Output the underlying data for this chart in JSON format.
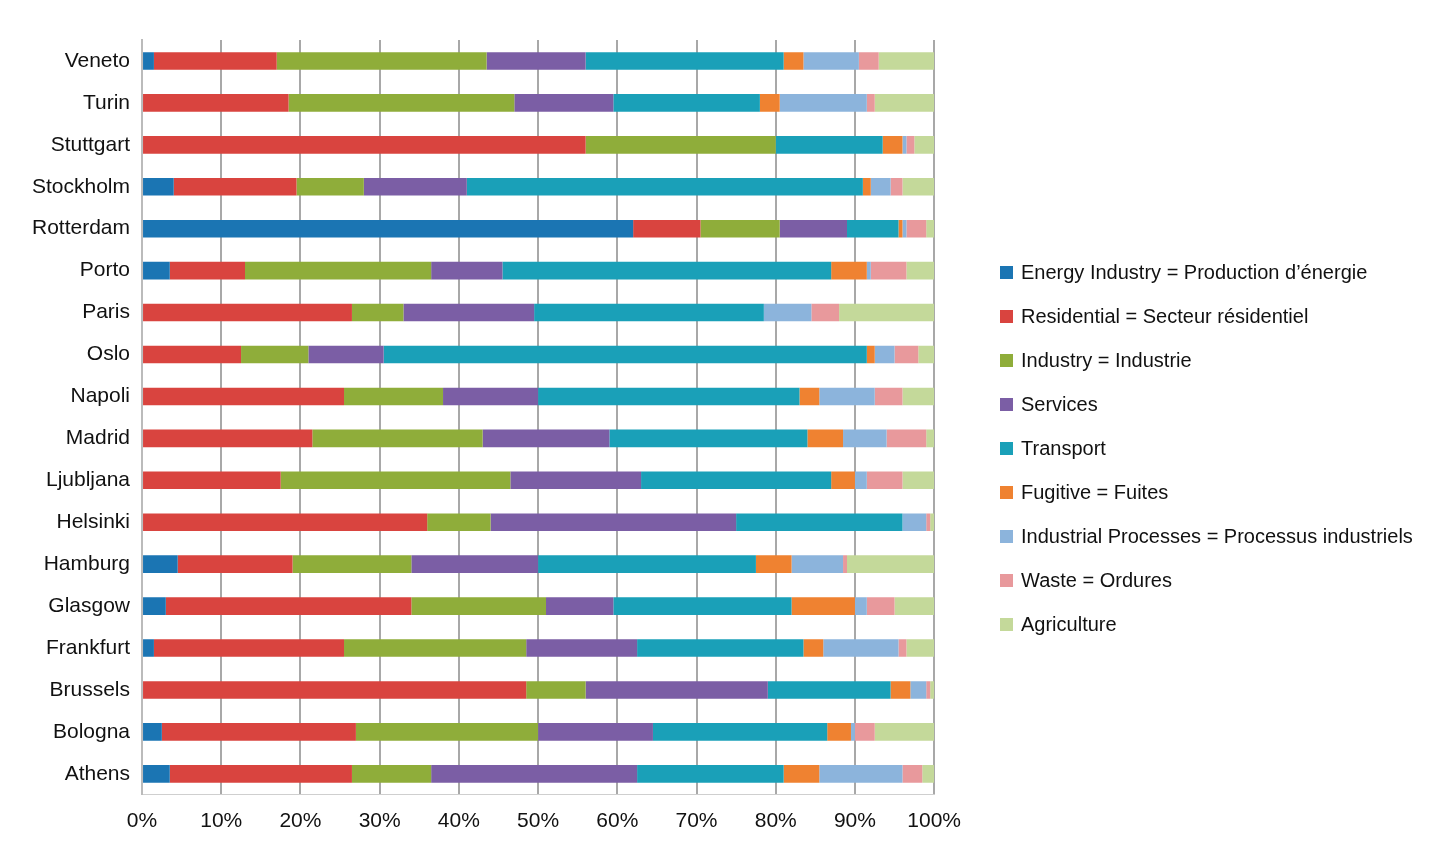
{
  "chart_data": {
    "type": "bar",
    "orientation": "horizontal",
    "stacked": true,
    "categories": [
      "Veneto",
      "Turin",
      "Stuttgart",
      "Stockholm",
      "Rotterdam",
      "Porto",
      "Paris",
      "Oslo",
      "Napoli",
      "Madrid",
      "Ljubljana",
      "Helsinki",
      "Hamburg",
      "Glasgow",
      "Frankfurt",
      "Brussels",
      "Bologna",
      "Athens"
    ],
    "series": [
      {
        "name": "Energy Industry  = Production d’énergie",
        "color": "#1b75b3",
        "values": [
          1.5,
          0,
          0,
          4,
          62,
          3.5,
          0,
          0,
          0,
          0,
          0,
          0,
          4.5,
          3,
          1.5,
          0,
          2.5,
          3.5
        ]
      },
      {
        "name": "Residential  = Secteur résidentiel",
        "color": "#d9443f",
        "values": [
          15.5,
          18.5,
          56,
          15.5,
          8.5,
          9.5,
          26.5,
          12.5,
          25.5,
          21.5,
          17.5,
          36,
          14.5,
          31,
          24,
          48.5,
          24.5,
          23
        ]
      },
      {
        "name": "Industry  = Industrie",
        "color": "#8fad3a",
        "values": [
          26.5,
          28.5,
          24,
          8.5,
          10,
          23.5,
          6.5,
          8.5,
          12.5,
          21.5,
          29,
          8,
          15,
          17,
          23,
          7.5,
          23,
          10
        ]
      },
      {
        "name": "Services",
        "color": "#7b5ea5",
        "values": [
          12.5,
          12.5,
          0,
          13,
          8.5,
          9,
          16.5,
          9.5,
          12,
          16,
          16.5,
          31,
          16,
          8.5,
          14,
          23,
          14.5,
          26
        ]
      },
      {
        "name": "Transport",
        "color": "#1aa0b8",
        "values": [
          25,
          18.5,
          13.5,
          50,
          6.5,
          41.5,
          29,
          61,
          33,
          25,
          24,
          21,
          27.5,
          22.5,
          21,
          15.5,
          22,
          18.5
        ]
      },
      {
        "name": "Fugitive  = Fuites",
        "color": "#ef8231",
        "values": [
          2.5,
          2.5,
          2.5,
          1,
          0.5,
          4.5,
          0,
          1,
          2.5,
          4.5,
          3,
          0,
          4.5,
          8,
          2.5,
          2.5,
          3,
          4.5
        ]
      },
      {
        "name": "Industrial Processes  = Processus industriels",
        "color": "#8cb4dc",
        "values": [
          7,
          11,
          0.5,
          2.5,
          0.5,
          0.5,
          6,
          2.5,
          7,
          5.5,
          1.5,
          3,
          6.5,
          1.5,
          9.5,
          2,
          0.5,
          10.5
        ]
      },
      {
        "name": "Waste  = Ordures",
        "color": "#e8999c",
        "values": [
          2.5,
          1,
          1,
          1.5,
          2.5,
          4.5,
          3.5,
          3,
          3.5,
          5,
          4.5,
          0.5,
          0.5,
          3.5,
          1,
          0.5,
          2.5,
          2.5
        ]
      },
      {
        "name": "Agriculture",
        "color": "#c4d99a",
        "values": [
          7,
          7.5,
          2.5,
          4,
          1,
          3.5,
          12,
          2,
          4,
          1,
          4,
          0.5,
          11,
          5,
          3.5,
          0.5,
          7.5,
          1.5
        ]
      }
    ],
    "xlim": [
      0,
      100
    ],
    "xticks": [
      {
        "value": 0,
        "label": "0%"
      },
      {
        "value": 10,
        "label": "10%"
      },
      {
        "value": 20,
        "label": "20%"
      },
      {
        "value": 30,
        "label": "30%"
      },
      {
        "value": 40,
        "label": "40%"
      },
      {
        "value": 50,
        "label": "50%"
      },
      {
        "value": 60,
        "label": "60%"
      },
      {
        "value": 70,
        "label": "70%"
      },
      {
        "value": 80,
        "label": "80%"
      },
      {
        "value": 90,
        "label": "90%"
      },
      {
        "value": 100,
        "label": "100%"
      }
    ],
    "grid": "x",
    "legend": "right"
  }
}
